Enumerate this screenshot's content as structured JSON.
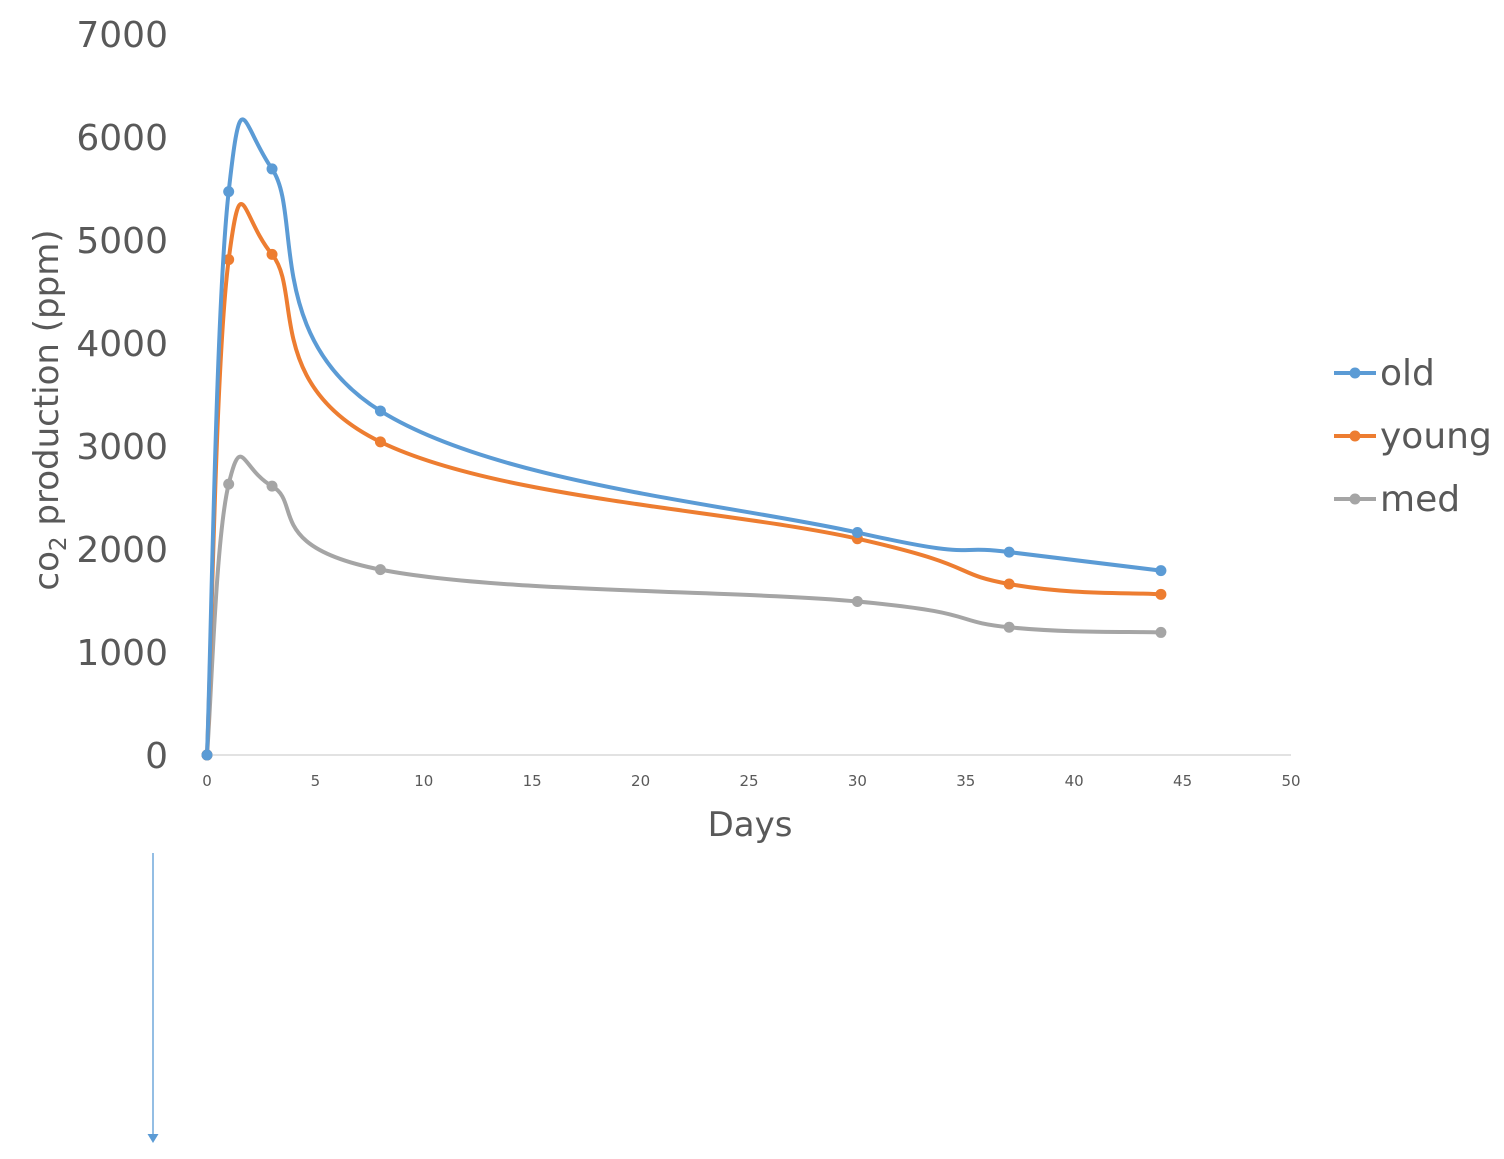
{
  "chart_data": {
    "type": "line",
    "title": "",
    "xlabel": "Days",
    "ylabel_main": "co",
    "ylabel_sub": "2",
    "ylabel_rest": " production (ppm)",
    "xlim": [
      0,
      50
    ],
    "ylim": [
      0,
      7000
    ],
    "xticks": [
      0,
      5,
      10,
      15,
      20,
      25,
      30,
      35,
      40,
      45,
      50
    ],
    "yticks": [
      0,
      1000,
      2000,
      3000,
      4000,
      5000,
      6000,
      7000
    ],
    "grid": false,
    "smooth": true,
    "legend_position": "right",
    "x": [
      0,
      1,
      3,
      8,
      30,
      37,
      44
    ],
    "series": [
      {
        "name": "old",
        "color": "#5B9BD5",
        "values": [
          0,
          5470,
          5690,
          3340,
          2160,
          1970,
          1790
        ]
      },
      {
        "name": "young",
        "color": "#ED7D31",
        "values": [
          0,
          4810,
          4860,
          3040,
          2100,
          1660,
          1560
        ]
      },
      {
        "name": "med",
        "color": "#A5A5A5",
        "values": [
          0,
          2630,
          2610,
          1800,
          1490,
          1240,
          1190
        ]
      }
    ]
  },
  "annotation": {
    "type": "arrow",
    "color": "#5B9BD5",
    "direction": "down"
  }
}
